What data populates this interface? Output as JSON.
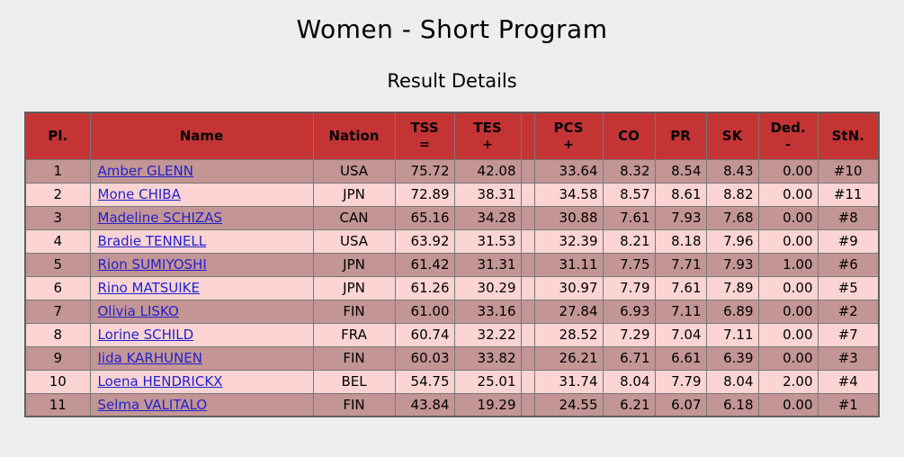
{
  "page": {
    "title": "Women - Short Program",
    "subtitle": "Result Details"
  },
  "colors": {
    "page_bg": "#eeeeee",
    "header_bg": "#c43434",
    "row_odd": "#c49595",
    "row_even": "#fcd4d4",
    "link": "#2222cc",
    "grid_border": "#787878",
    "outer_border": "#5f5f5f"
  },
  "table": {
    "columns": [
      {
        "key": "pl",
        "label": "Pl.",
        "sub": "",
        "align": "center"
      },
      {
        "key": "name",
        "label": "Name",
        "sub": "",
        "align": "left"
      },
      {
        "key": "nation",
        "label": "Nation",
        "sub": "",
        "align": "center"
      },
      {
        "key": "tss",
        "label": "TSS",
        "sub": "=",
        "align": "right"
      },
      {
        "key": "tes",
        "label": "TES",
        "sub": "+",
        "align": "right"
      },
      {
        "key": "spacer",
        "label": "",
        "sub": "",
        "align": "center"
      },
      {
        "key": "pcs",
        "label": "PCS",
        "sub": "+",
        "align": "right"
      },
      {
        "key": "co",
        "label": "CO",
        "sub": "",
        "align": "right"
      },
      {
        "key": "pr",
        "label": "PR",
        "sub": "",
        "align": "right"
      },
      {
        "key": "sk",
        "label": "SK",
        "sub": "",
        "align": "right"
      },
      {
        "key": "ded",
        "label": "Ded.",
        "sub": "-",
        "align": "right"
      },
      {
        "key": "stn",
        "label": "StN.",
        "sub": "",
        "align": "center"
      }
    ],
    "rows": [
      {
        "pl": "1",
        "name": "Amber GLENN",
        "nation": "USA",
        "tss": "75.72",
        "tes": "42.08",
        "pcs": "33.64",
        "co": "8.32",
        "pr": "8.54",
        "sk": "8.43",
        "ded": "0.00",
        "stn": "#10"
      },
      {
        "pl": "2",
        "name": "Mone CHIBA",
        "nation": "JPN",
        "tss": "72.89",
        "tes": "38.31",
        "pcs": "34.58",
        "co": "8.57",
        "pr": "8.61",
        "sk": "8.82",
        "ded": "0.00",
        "stn": "#11"
      },
      {
        "pl": "3",
        "name": "Madeline SCHIZAS",
        "nation": "CAN",
        "tss": "65.16",
        "tes": "34.28",
        "pcs": "30.88",
        "co": "7.61",
        "pr": "7.93",
        "sk": "7.68",
        "ded": "0.00",
        "stn": "#8"
      },
      {
        "pl": "4",
        "name": "Bradie TENNELL",
        "nation": "USA",
        "tss": "63.92",
        "tes": "31.53",
        "pcs": "32.39",
        "co": "8.21",
        "pr": "8.18",
        "sk": "7.96",
        "ded": "0.00",
        "stn": "#9"
      },
      {
        "pl": "5",
        "name": "Rion SUMIYOSHI",
        "nation": "JPN",
        "tss": "61.42",
        "tes": "31.31",
        "pcs": "31.11",
        "co": "7.75",
        "pr": "7.71",
        "sk": "7.93",
        "ded": "1.00",
        "stn": "#6"
      },
      {
        "pl": "6",
        "name": "Rino MATSUIKE",
        "nation": "JPN",
        "tss": "61.26",
        "tes": "30.29",
        "pcs": "30.97",
        "co": "7.79",
        "pr": "7.61",
        "sk": "7.89",
        "ded": "0.00",
        "stn": "#5"
      },
      {
        "pl": "7",
        "name": "Olivia LISKO",
        "nation": "FIN",
        "tss": "61.00",
        "tes": "33.16",
        "pcs": "27.84",
        "co": "6.93",
        "pr": "7.11",
        "sk": "6.89",
        "ded": "0.00",
        "stn": "#2"
      },
      {
        "pl": "8",
        "name": "Lorine SCHILD",
        "nation": "FRA",
        "tss": "60.74",
        "tes": "32.22",
        "pcs": "28.52",
        "co": "7.29",
        "pr": "7.04",
        "sk": "7.11",
        "ded": "0.00",
        "stn": "#7"
      },
      {
        "pl": "9",
        "name": "Iida KARHUNEN",
        "nation": "FIN",
        "tss": "60.03",
        "tes": "33.82",
        "pcs": "26.21",
        "co": "6.71",
        "pr": "6.61",
        "sk": "6.39",
        "ded": "0.00",
        "stn": "#3"
      },
      {
        "pl": "10",
        "name": "Loena HENDRICKX",
        "nation": "BEL",
        "tss": "54.75",
        "tes": "25.01",
        "pcs": "31.74",
        "co": "8.04",
        "pr": "7.79",
        "sk": "8.04",
        "ded": "2.00",
        "stn": "#4"
      },
      {
        "pl": "11",
        "name": "Selma VALITALO",
        "nation": "FIN",
        "tss": "43.84",
        "tes": "19.29",
        "pcs": "24.55",
        "co": "6.21",
        "pr": "6.07",
        "sk": "6.18",
        "ded": "0.00",
        "stn": "#1"
      }
    ]
  }
}
